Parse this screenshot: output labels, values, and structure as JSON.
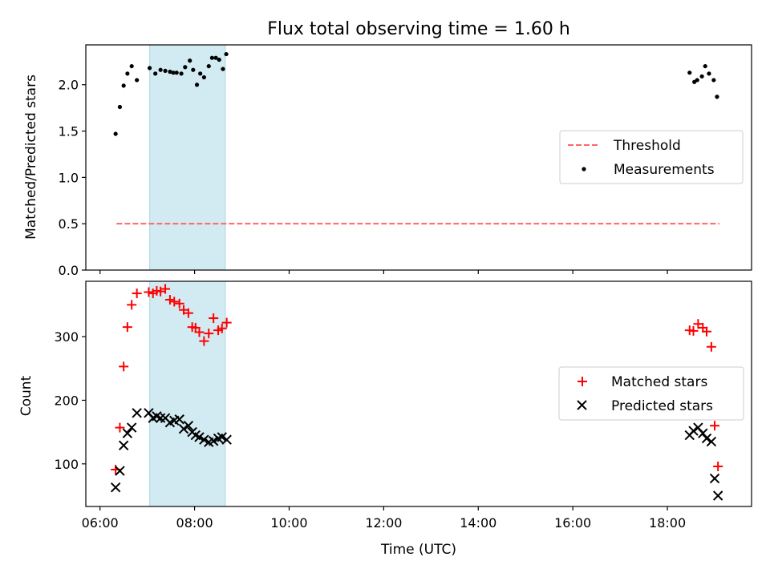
{
  "chart_data": [
    {
      "type": "scatter",
      "title": "Flux total observing time = 1.60 h",
      "xlabel": "",
      "ylabel": "Matched/Predicted stars",
      "xlim_hours": [
        5.7,
        19.78
      ],
      "ylim": [
        0,
        2.43
      ],
      "yticks": [
        0.0,
        0.5,
        1.0,
        1.5,
        2.0
      ],
      "ytick_labels": [
        "0.0",
        "0.5",
        "1.0",
        "1.5",
        "2.0"
      ],
      "shaded_span_hours": [
        7.05,
        8.65
      ],
      "shaded_color": "#add8e6",
      "legend_location": "center-right",
      "legend_entries": [
        "Threshold",
        "Measurements"
      ],
      "series": [
        {
          "name": "Threshold",
          "kind": "dashed-line",
          "color": "#ff6666",
          "x_hours": [
            6.35,
            19.1
          ],
          "y": [
            0.5,
            0.5
          ]
        },
        {
          "name": "Measurements",
          "kind": "points",
          "color": "#000000",
          "x_hours": [
            6.33,
            6.42,
            6.5,
            6.58,
            6.67,
            6.78,
            7.05,
            7.17,
            7.28,
            7.38,
            7.48,
            7.55,
            7.62,
            7.72,
            7.8,
            7.9,
            7.97,
            8.05,
            8.12,
            8.2,
            8.3,
            8.37,
            8.45,
            8.52,
            8.6,
            8.67,
            18.47,
            18.57,
            18.63,
            18.73,
            18.8,
            18.88,
            18.98,
            19.05
          ],
          "y": [
            1.47,
            1.76,
            1.99,
            2.12,
            2.2,
            2.05,
            2.18,
            2.12,
            2.16,
            2.15,
            2.14,
            2.13,
            2.13,
            2.12,
            2.19,
            2.26,
            2.16,
            2.0,
            2.12,
            2.08,
            2.2,
            2.29,
            2.29,
            2.27,
            2.17,
            2.33,
            2.13,
            2.03,
            2.05,
            2.09,
            2.2,
            2.12,
            2.05,
            1.87
          ]
        }
      ]
    },
    {
      "type": "scatter",
      "title": "",
      "xlabel": "Time (UTC)",
      "ylabel": "Count",
      "xlim_hours": [
        5.7,
        19.78
      ],
      "ylim": [
        33,
        387
      ],
      "yticks": [
        100,
        200,
        300
      ],
      "ytick_labels": [
        "100",
        "200",
        "300"
      ],
      "xticks_hours": [
        6,
        8,
        10,
        12,
        14,
        16,
        18
      ],
      "xtick_labels": [
        "06:00",
        "08:00",
        "10:00",
        "12:00",
        "14:00",
        "16:00",
        "18:00"
      ],
      "shaded_span_hours": [
        7.05,
        8.65
      ],
      "shaded_color": "#add8e6",
      "legend_location": "center-right",
      "legend_entries": [
        "Matched stars",
        "Predicted stars"
      ],
      "series": [
        {
          "name": "Matched stars",
          "kind": "plus",
          "color": "#ff0000",
          "x_hours": [
            6.33,
            6.42,
            6.5,
            6.58,
            6.67,
            6.78,
            7.03,
            7.12,
            7.2,
            7.28,
            7.38,
            7.48,
            7.57,
            7.68,
            7.77,
            7.87,
            7.95,
            8.02,
            8.1,
            8.2,
            8.3,
            8.4,
            8.5,
            8.58,
            8.68,
            18.47,
            18.55,
            18.65,
            18.75,
            18.83,
            18.93,
            19.0,
            19.07
          ],
          "y": [
            91,
            157,
            253,
            315,
            350,
            368,
            370,
            368,
            372,
            371,
            375,
            358,
            355,
            352,
            342,
            337,
            315,
            314,
            307,
            293,
            305,
            329,
            310,
            313,
            322,
            310,
            309,
            320,
            314,
            308,
            284,
            160,
            96
          ]
        },
        {
          "name": "Predicted stars",
          "kind": "cross",
          "color": "#000000",
          "x_hours": [
            6.33,
            6.42,
            6.5,
            6.58,
            6.67,
            6.78,
            7.03,
            7.12,
            7.2,
            7.28,
            7.38,
            7.48,
            7.57,
            7.68,
            7.77,
            7.87,
            7.95,
            8.02,
            8.1,
            8.2,
            8.3,
            8.4,
            8.5,
            8.58,
            8.68,
            18.47,
            18.55,
            18.65,
            18.75,
            18.83,
            18.93,
            19.0,
            19.07
          ],
          "y": [
            63,
            89,
            129,
            148,
            157,
            180,
            180,
            172,
            175,
            172,
            172,
            165,
            168,
            170,
            155,
            160,
            150,
            145,
            142,
            138,
            134,
            136,
            140,
            142,
            138,
            145,
            152,
            157,
            148,
            140,
            135,
            77,
            50
          ]
        }
      ]
    }
  ]
}
